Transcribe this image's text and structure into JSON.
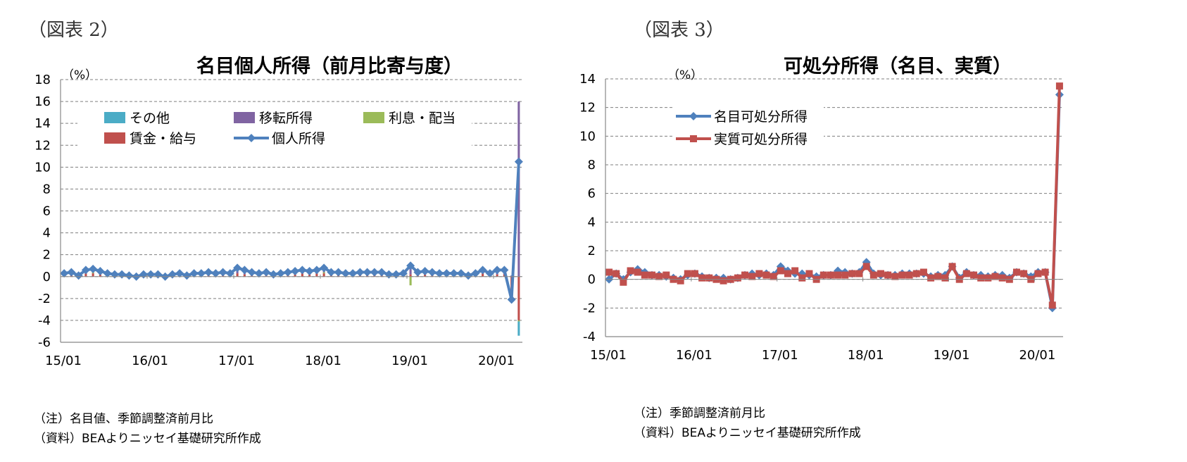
{
  "left": {
    "figure_label": "（図表 2）",
    "unit": "（%）",
    "notes": [
      "（注）名目値、季節調整済前月比",
      "（資料）BEAよりニッセイ基礎研究所作成"
    ]
  },
  "right": {
    "figure_label": "（図表 3）",
    "unit": "（%）",
    "notes": [
      "（注）季節調整済前月比",
      "（資料）BEAよりニッセイ基礎研究所作成"
    ]
  },
  "chart_data": [
    {
      "type": "bar+line",
      "title": "名目個人所得（前月比寄与度）",
      "ylabel": "（%）",
      "ylim": [
        -6,
        18
      ],
      "yticks": [
        -6,
        -4,
        -2,
        0,
        2,
        4,
        6,
        8,
        10,
        12,
        14,
        16,
        18
      ],
      "xtick_labels": [
        "15/01",
        "16/01",
        "17/01",
        "18/01",
        "19/01",
        "20/01"
      ],
      "grid": true,
      "legend_position": "top-left inside",
      "stacked": true,
      "colors": {
        "その他": "#4bacc6",
        "移転所得": "#8064a2",
        "利息・配当": "#9bbb59",
        "賃金・給与": "#c0504d",
        "個人所得": "#4f81bd"
      },
      "bar_series": [
        {
          "name": "その他",
          "values": [
            0.1,
            0.1,
            0.0,
            0.0,
            0.1,
            0.1,
            0.1,
            0.0,
            0.0,
            0.0,
            0.0,
            0.0,
            0.0,
            0.0,
            0.0,
            0.0,
            0.0,
            0.0,
            0.0,
            0.0,
            0.0,
            0.0,
            0.0,
            0.0,
            0.0,
            0.0,
            0.0,
            0.0,
            0.0,
            0.0,
            0.0,
            0.0,
            0.0,
            0.0,
            0.0,
            0.0,
            0.0,
            0.0,
            0.0,
            0.0,
            0.0,
            0.0,
            0.0,
            0.0,
            0.0,
            0.0,
            0.0,
            0.0,
            0.0,
            0.0,
            0.0,
            0.0,
            0.0,
            0.0,
            0.0,
            0.0,
            0.0,
            0.0,
            0.0,
            0.0,
            0.0,
            0.0,
            0.0,
            -1.3
          ]
        },
        {
          "name": "移転所得",
          "values": [
            0.1,
            0.1,
            0.0,
            0.1,
            0.1,
            0.1,
            0.1,
            0.1,
            0.0,
            0.0,
            0.0,
            0.0,
            0.1,
            0.1,
            0.0,
            0.0,
            0.1,
            0.0,
            0.1,
            0.1,
            0.1,
            0.1,
            0.1,
            0.1,
            0.2,
            0.1,
            0.1,
            0.1,
            0.1,
            0.1,
            0.1,
            0.1,
            0.1,
            0.1,
            0.1,
            0.1,
            0.2,
            0.1,
            0.1,
            0.1,
            0.1,
            0.1,
            0.1,
            0.1,
            0.1,
            0.1,
            0.1,
            0.1,
            0.8,
            0.1,
            0.1,
            0.1,
            0.1,
            0.1,
            0.1,
            0.1,
            0.1,
            0.1,
            0.1,
            0.1,
            0.2,
            0.1,
            0.1,
            16.0
          ]
        },
        {
          "name": "利息・配当",
          "values": [
            0.0,
            0.0,
            0.0,
            0.1,
            0.1,
            0.0,
            0.0,
            0.0,
            0.0,
            0.0,
            0.0,
            0.0,
            0.0,
            0.0,
            0.0,
            0.0,
            0.0,
            0.0,
            0.0,
            0.0,
            0.0,
            0.0,
            0.0,
            0.0,
            0.0,
            0.0,
            0.0,
            0.0,
            0.0,
            0.0,
            0.0,
            0.0,
            0.1,
            0.0,
            0.0,
            0.0,
            0.1,
            0.0,
            0.0,
            0.0,
            0.0,
            0.0,
            0.0,
            0.0,
            0.0,
            0.0,
            0.0,
            0.0,
            -0.8,
            0.0,
            0.0,
            0.0,
            0.0,
            0.0,
            0.0,
            0.0,
            0.0,
            0.0,
            0.0,
            0.0,
            0.0,
            0.0,
            -0.1,
            -0.1
          ]
        },
        {
          "name": "賃金・給与",
          "values": [
            0.1,
            0.2,
            0.0,
            0.3,
            0.3,
            0.2,
            0.1,
            0.1,
            0.1,
            0.1,
            0.0,
            0.1,
            0.1,
            0.1,
            0.0,
            0.1,
            0.1,
            0.0,
            0.1,
            0.2,
            0.1,
            0.2,
            0.1,
            0.1,
            0.3,
            0.2,
            0.1,
            0.2,
            0.1,
            0.2,
            0.2,
            0.2,
            0.3,
            0.3,
            0.3,
            0.3,
            0.3,
            0.2,
            0.2,
            0.1,
            0.1,
            0.2,
            0.2,
            0.2,
            0.2,
            0.1,
            0.1,
            0.1,
            0.2,
            0.2,
            0.2,
            0.2,
            0.1,
            0.2,
            0.1,
            0.2,
            0.1,
            0.1,
            0.3,
            0.1,
            0.2,
            0.2,
            -1.9,
            -4.0
          ]
        }
      ],
      "line_series": [
        {
          "name": "個人所得",
          "values": [
            0.3,
            0.4,
            0.1,
            0.6,
            0.7,
            0.5,
            0.3,
            0.2,
            0.2,
            0.1,
            0.0,
            0.2,
            0.2,
            0.2,
            0.0,
            0.2,
            0.3,
            0.1,
            0.3,
            0.3,
            0.4,
            0.3,
            0.4,
            0.3,
            0.8,
            0.6,
            0.4,
            0.3,
            0.4,
            0.2,
            0.3,
            0.4,
            0.5,
            0.6,
            0.5,
            0.6,
            0.8,
            0.4,
            0.4,
            0.3,
            0.3,
            0.4,
            0.4,
            0.4,
            0.4,
            0.2,
            0.2,
            0.3,
            1.0,
            0.4,
            0.5,
            0.4,
            0.3,
            0.3,
            0.3,
            0.3,
            0.1,
            0.3,
            0.6,
            0.3,
            0.6,
            0.6,
            -2.1,
            10.5
          ]
        }
      ]
    },
    {
      "type": "line",
      "title": "可処分所得（名目、実質）",
      "ylabel": "（%）",
      "ylim": [
        -4,
        14
      ],
      "yticks": [
        -4,
        -2,
        0,
        2,
        4,
        6,
        8,
        10,
        12,
        14
      ],
      "xtick_labels": [
        "15/01",
        "16/01",
        "17/01",
        "18/01",
        "19/01",
        "20/01"
      ],
      "grid": true,
      "legend_position": "top-left inside",
      "colors": {
        "名目可処分所得": "#4f81bd",
        "実質可処分所得": "#c0504d"
      },
      "series": [
        {
          "name": "名目可処分所得",
          "values": [
            0.0,
            0.4,
            0.0,
            0.5,
            0.7,
            0.5,
            0.3,
            0.3,
            0.2,
            0.1,
            0.0,
            0.3,
            0.4,
            0.2,
            0.1,
            0.1,
            0.1,
            0.0,
            0.1,
            0.3,
            0.4,
            0.3,
            0.4,
            0.3,
            0.9,
            0.6,
            0.4,
            0.4,
            0.3,
            0.2,
            0.3,
            0.3,
            0.6,
            0.5,
            0.4,
            0.5,
            1.2,
            0.4,
            0.3,
            0.3,
            0.3,
            0.4,
            0.4,
            0.4,
            0.4,
            0.2,
            0.3,
            0.3,
            0.9,
            0.1,
            0.5,
            0.3,
            0.3,
            0.2,
            0.3,
            0.3,
            0.1,
            0.5,
            0.4,
            0.2,
            0.5,
            0.5,
            -2.0,
            12.9
          ]
        },
        {
          "name": "実質可処分所得",
          "values": [
            0.5,
            0.4,
            -0.2,
            0.6,
            0.5,
            0.3,
            0.3,
            0.2,
            0.3,
            0.0,
            -0.1,
            0.4,
            0.4,
            0.1,
            0.1,
            0.0,
            -0.1,
            0.0,
            0.1,
            0.3,
            0.2,
            0.4,
            0.3,
            0.2,
            0.6,
            0.4,
            0.6,
            0.1,
            0.4,
            0.0,
            0.3,
            0.3,
            0.3,
            0.3,
            0.4,
            0.4,
            0.9,
            0.3,
            0.4,
            0.3,
            0.2,
            0.3,
            0.3,
            0.4,
            0.5,
            0.1,
            0.2,
            0.1,
            0.9,
            0.0,
            0.4,
            0.3,
            0.1,
            0.1,
            0.2,
            0.1,
            0.0,
            0.5,
            0.4,
            0.0,
            0.4,
            0.5,
            -1.8,
            13.5
          ]
        }
      ]
    }
  ]
}
